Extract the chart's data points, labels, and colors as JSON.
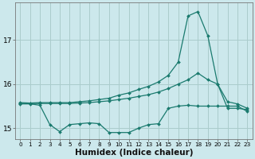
{
  "xlabel": "Humidex (Indice chaleur)",
  "bg_color": "#cce8ec",
  "grid_color": "#aacccc",
  "line_color": "#1a7a6e",
  "xlim": [
    -0.5,
    23.5
  ],
  "ylim": [
    14.75,
    17.85
  ],
  "yticks": [
    15,
    16,
    17
  ],
  "xticks": [
    0,
    1,
    2,
    3,
    4,
    5,
    6,
    7,
    8,
    9,
    10,
    11,
    12,
    13,
    14,
    15,
    16,
    17,
    18,
    19,
    20,
    21,
    22,
    23
  ],
  "series1_x": [
    0,
    1,
    2,
    3,
    4,
    5,
    6,
    7,
    8,
    9,
    10,
    11,
    12,
    13,
    14,
    15,
    16,
    17,
    18,
    19,
    20,
    21,
    22,
    23
  ],
  "series1_y": [
    15.58,
    15.57,
    15.58,
    15.58,
    15.58,
    15.58,
    15.6,
    15.62,
    15.65,
    15.68,
    15.75,
    15.8,
    15.88,
    15.95,
    16.05,
    16.2,
    16.5,
    17.55,
    17.65,
    17.1,
    16.0,
    15.45,
    15.45,
    15.42
  ],
  "series2_x": [
    0,
    1,
    2,
    3,
    4,
    5,
    6,
    7,
    8,
    9,
    10,
    11,
    12,
    13,
    14,
    15,
    16,
    17,
    18,
    19,
    20,
    21,
    22,
    23
  ],
  "series2_y": [
    15.56,
    15.56,
    15.56,
    15.56,
    15.56,
    15.56,
    15.57,
    15.58,
    15.6,
    15.62,
    15.65,
    15.68,
    15.72,
    15.76,
    15.82,
    15.9,
    16.0,
    16.1,
    16.25,
    16.1,
    16.0,
    15.6,
    15.55,
    15.45
  ],
  "series3_x": [
    0,
    1,
    2,
    3,
    4,
    5,
    6,
    7,
    8,
    9,
    10,
    11,
    12,
    13,
    14,
    15,
    16,
    17,
    18,
    19,
    20,
    21,
    22,
    23
  ],
  "series3_y": [
    15.55,
    15.55,
    15.52,
    15.08,
    14.92,
    15.08,
    15.1,
    15.12,
    15.1,
    14.9,
    14.9,
    14.9,
    15.0,
    15.08,
    15.1,
    15.45,
    15.5,
    15.52,
    15.5,
    15.5,
    15.5,
    15.5,
    15.5,
    15.38
  ],
  "tick_fontsize": 6.5,
  "label_fontsize": 7.5
}
